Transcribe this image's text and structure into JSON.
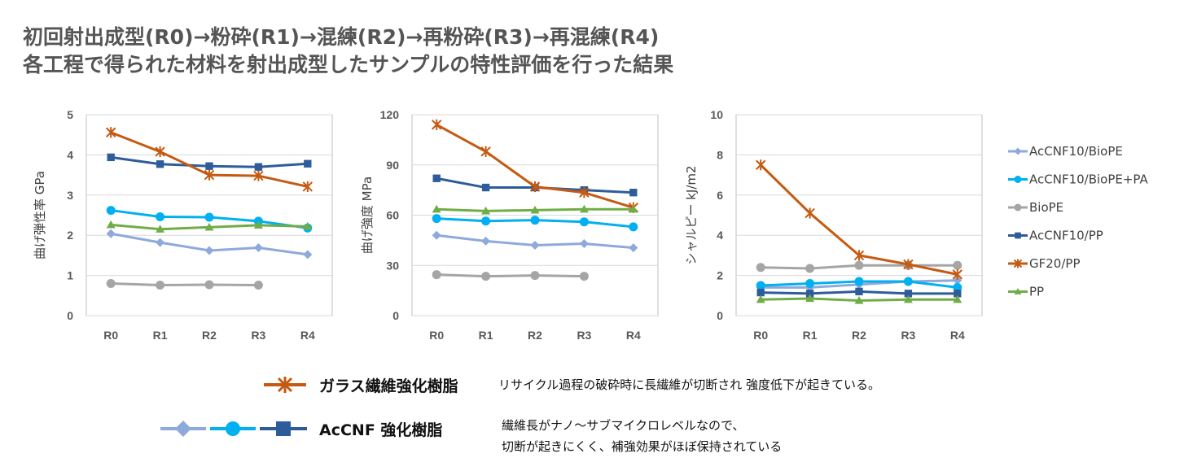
{
  "header": {
    "title_line1": "初回射出成型(R0)→粉砕(R1)→混練(R2)→再粉砕(R3)→再混練(R4)",
    "title_line2": "各工程で得られた材料を射出成型したサンプルの特性評価を行った結果"
  },
  "colors": {
    "AcCNF10/BioPE": "#8EA9DB",
    "AcCNF10/BioPE+PA": "#00B0F0",
    "BioPE": "#A5A5A5",
    "AcCNF10/PP": "#2E5C9A",
    "GF20/PP": "#C55A11",
    "PP": "#70AD47"
  },
  "chart_data": [
    {
      "type": "line",
      "ylabel": "曲げ弾性率 GPa",
      "categories": [
        "R0",
        "R1",
        "R2",
        "R3",
        "R4"
      ],
      "ylim": [
        0,
        5
      ],
      "yticks": [
        0,
        1,
        2,
        3,
        4,
        5
      ],
      "grid": true,
      "series": [
        {
          "name": "AcCNF10/BioPE",
          "values": [
            2.04,
            1.82,
            1.62,
            1.69,
            1.52
          ]
        },
        {
          "name": "AcCNF10/BioPE+PA",
          "values": [
            2.62,
            2.46,
            2.45,
            2.35,
            2.18
          ]
        },
        {
          "name": "BioPE",
          "values": [
            0.8,
            0.76,
            0.77,
            0.76,
            null
          ]
        },
        {
          "name": "AcCNF10/PP",
          "values": [
            3.94,
            3.77,
            3.72,
            3.7,
            3.78
          ]
        },
        {
          "name": "GF20/PP",
          "values": [
            4.56,
            4.08,
            3.5,
            3.48,
            3.21
          ]
        },
        {
          "name": "PP",
          "values": [
            2.26,
            2.15,
            2.2,
            2.25,
            2.22
          ]
        }
      ]
    },
    {
      "type": "line",
      "ylabel": "曲げ強度 MPa",
      "categories": [
        "R0",
        "R1",
        "R2",
        "R3",
        "R4"
      ],
      "ylim": [
        0,
        120
      ],
      "yticks": [
        0,
        30,
        60,
        90,
        120
      ],
      "grid": true,
      "series": [
        {
          "name": "AcCNF10/BioPE",
          "values": [
            48,
            44.5,
            42,
            43,
            40.5
          ]
        },
        {
          "name": "AcCNF10/BioPE+PA",
          "values": [
            58,
            56.5,
            57,
            56,
            53
          ]
        },
        {
          "name": "BioPE",
          "values": [
            24.5,
            23.5,
            24,
            23.5,
            null
          ]
        },
        {
          "name": "AcCNF10/PP",
          "values": [
            82,
            76.5,
            76.5,
            75,
            73.5
          ]
        },
        {
          "name": "GF20/PP",
          "values": [
            114,
            98,
            77,
            73.5,
            64.5
          ]
        },
        {
          "name": "PP",
          "values": [
            63.5,
            62.5,
            63,
            63.5,
            63.5
          ]
        }
      ]
    },
    {
      "type": "line",
      "ylabel": "シャルピー kJ/m2",
      "categories": [
        "R0",
        "R1",
        "R2",
        "R3",
        "R4"
      ],
      "ylim": [
        0,
        10
      ],
      "yticks": [
        0,
        2,
        4,
        6,
        8,
        10
      ],
      "grid": true,
      "legend_position": "right",
      "series": [
        {
          "name": "AcCNF10/BioPE",
          "values": [
            1.4,
            1.4,
            1.55,
            1.7,
            1.75
          ]
        },
        {
          "name": "AcCNF10/BioPE+PA",
          "values": [
            1.5,
            1.6,
            1.7,
            1.7,
            1.4
          ]
        },
        {
          "name": "BioPE",
          "values": [
            2.4,
            2.35,
            2.5,
            2.5,
            2.5
          ]
        },
        {
          "name": "AcCNF10/PP",
          "values": [
            1.15,
            1.1,
            1.2,
            1.1,
            1.1
          ]
        },
        {
          "name": "GF20/PP",
          "values": [
            7.5,
            5.1,
            3.0,
            2.55,
            2.05
          ]
        },
        {
          "name": "PP",
          "values": [
            0.8,
            0.85,
            0.75,
            0.8,
            0.8
          ]
        }
      ]
    }
  ],
  "notes": {
    "glass": {
      "label": "ガラス繊維強化樹脂",
      "text": "リサイクル過程の破砕時に長繊維が切断され 強度低下が起きている。"
    },
    "accnf": {
      "label": "AcCNF 強化樹脂",
      "text_line1": "繊維長がナノ～サブマイクロレベルなので、",
      "text_line2": "切断が起きにくく、補強効果がほぼ保持されている"
    }
  }
}
